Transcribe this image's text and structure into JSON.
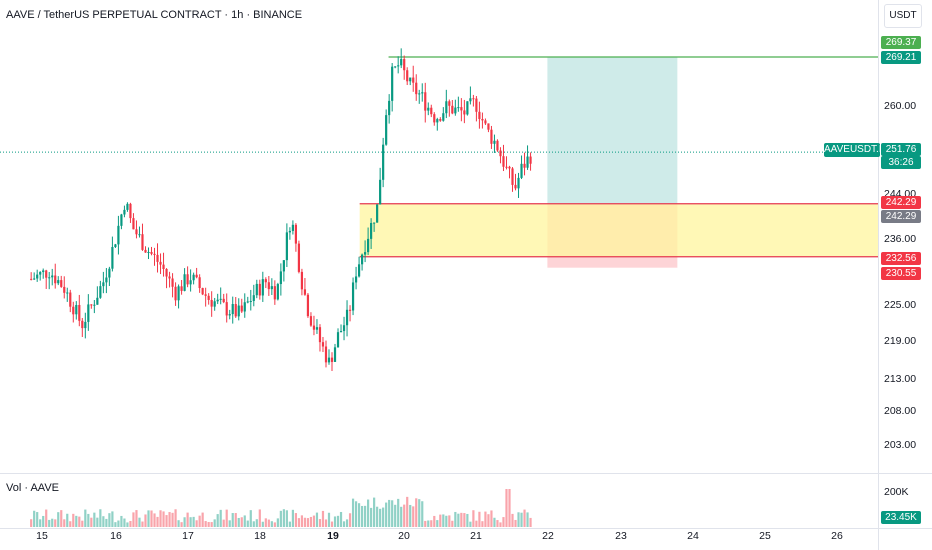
{
  "header": {
    "title": "AAVE / TetherUS PERPETUAL CONTRACT · 1h · BINANCE",
    "currency": "USDT"
  },
  "volume": {
    "title": "Vol · AAVE",
    "axis_label": "200K",
    "current_tag": "23.45K"
  },
  "price_axis": {
    "labels": [
      "260.00",
      "244.00",
      "236.00",
      "225.00",
      "219.00",
      "213.00",
      "208.00",
      "203.00"
    ],
    "tags": {
      "target_top": "269.37",
      "target": "269.21",
      "current_symbol": "AAVEUSDT.P",
      "current_price": "251.76",
      "countdown": "36:26",
      "zone_top": "242.29",
      "zone_top_grey": "242.29",
      "zone_bottom": "232.56",
      "stop": "230.55"
    }
  },
  "time_axis": {
    "labels": [
      "15",
      "16",
      "17",
      "18",
      "19",
      "20",
      "21",
      "22",
      "23",
      "24",
      "25",
      "26"
    ]
  },
  "colors": {
    "up": "#089981",
    "down": "#f23645",
    "green_tag": "#4caf50",
    "target_tag": "#089981",
    "zone": "#fff59d",
    "zone_line": "#e53950",
    "profit": "#26a69a",
    "loss": "#f7525f"
  },
  "chart_data": {
    "type": "candlestick",
    "symbol": "AAVEUSDT.P",
    "interval": "1h",
    "x_range": [
      "15",
      "26"
    ],
    "y_range": [
      201,
      273
    ],
    "close_path": [
      {
        "day": 14.85,
        "price": 228.5
      },
      {
        "day": 15.1,
        "price": 230
      },
      {
        "day": 15.3,
        "price": 227
      },
      {
        "day": 15.45,
        "price": 223
      },
      {
        "day": 15.55,
        "price": 220
      },
      {
        "day": 15.7,
        "price": 224
      },
      {
        "day": 15.85,
        "price": 228
      },
      {
        "day": 16.0,
        "price": 235
      },
      {
        "day": 16.15,
        "price": 243
      },
      {
        "day": 16.25,
        "price": 238
      },
      {
        "day": 16.45,
        "price": 234
      },
      {
        "day": 16.65,
        "price": 231
      },
      {
        "day": 16.85,
        "price": 226
      },
      {
        "day": 17.05,
        "price": 229
      },
      {
        "day": 17.3,
        "price": 225
      },
      {
        "day": 17.55,
        "price": 223
      },
      {
        "day": 17.75,
        "price": 222
      },
      {
        "day": 17.95,
        "price": 226
      },
      {
        "day": 18.1,
        "price": 228
      },
      {
        "day": 18.25,
        "price": 226
      },
      {
        "day": 18.45,
        "price": 240
      },
      {
        "day": 18.6,
        "price": 228
      },
      {
        "day": 18.7,
        "price": 222
      },
      {
        "day": 18.85,
        "price": 217
      },
      {
        "day": 18.98,
        "price": 213
      },
      {
        "day": 19.1,
        "price": 218
      },
      {
        "day": 19.25,
        "price": 222
      },
      {
        "day": 19.35,
        "price": 230
      },
      {
        "day": 19.5,
        "price": 236
      },
      {
        "day": 19.65,
        "price": 242
      },
      {
        "day": 19.75,
        "price": 258
      },
      {
        "day": 19.85,
        "price": 266
      },
      {
        "day": 19.95,
        "price": 268
      },
      {
        "day": 20.1,
        "price": 264
      },
      {
        "day": 20.25,
        "price": 262
      },
      {
        "day": 20.45,
        "price": 258
      },
      {
        "day": 20.6,
        "price": 260
      },
      {
        "day": 20.85,
        "price": 259
      },
      {
        "day": 21.0,
        "price": 261
      },
      {
        "day": 21.15,
        "price": 256
      },
      {
        "day": 21.3,
        "price": 253
      },
      {
        "day": 21.45,
        "price": 248
      },
      {
        "day": 21.55,
        "price": 245
      },
      {
        "day": 21.65,
        "price": 249
      },
      {
        "day": 21.8,
        "price": 251.76
      }
    ],
    "levels": {
      "target": 269.21,
      "zone_top": 242.29,
      "zone_bottom": 232.56,
      "stop": 230.55,
      "current": 251.76
    },
    "position_box": {
      "x_start": "22",
      "x_end": "23.8",
      "entry": 242.29,
      "target": 269.21,
      "stop": 230.55
    }
  }
}
